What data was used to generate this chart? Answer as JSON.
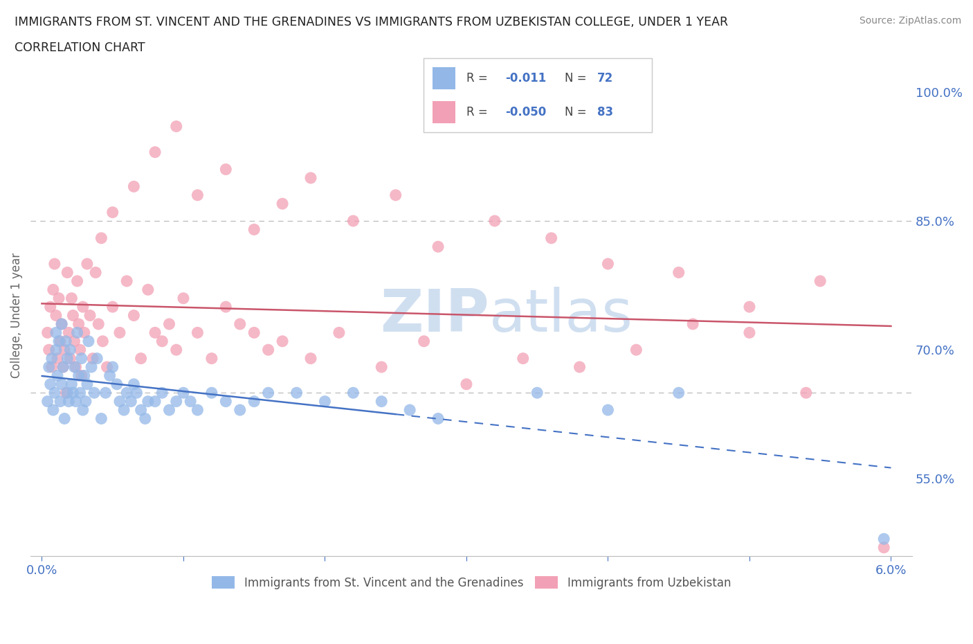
{
  "title_line1": "IMMIGRANTS FROM ST. VINCENT AND THE GRENADINES VS IMMIGRANTS FROM UZBEKISTAN COLLEGE, UNDER 1 YEAR",
  "title_line2": "CORRELATION CHART",
  "source_text": "Source: ZipAtlas.com",
  "ylabel": "College, Under 1 year",
  "xlim": [
    0.0,
    6.0
  ],
  "ylim": [
    46.0,
    102.0
  ],
  "yticks_right": [
    55.0,
    70.0,
    85.0,
    100.0
  ],
  "ytick_right_labels": [
    "55.0%",
    "70.0%",
    "85.0%",
    "100.0%"
  ],
  "hline1": 85.0,
  "hline2": 65.0,
  "series1_color": "#93B8E8",
  "series2_color": "#F2A0B5",
  "series1_label": "Immigrants from St. Vincent and the Grenadines",
  "series2_label": "Immigrants from Uzbekistan",
  "series1_R": -0.011,
  "series1_N": 72,
  "series2_R": -0.05,
  "series2_N": 83,
  "trend1_color": "#4472C4",
  "trend2_color": "#C9556A",
  "background_color": "#FFFFFF",
  "series1_x": [
    0.04,
    0.05,
    0.06,
    0.07,
    0.08,
    0.09,
    0.1,
    0.1,
    0.11,
    0.12,
    0.13,
    0.14,
    0.14,
    0.15,
    0.16,
    0.17,
    0.18,
    0.18,
    0.19,
    0.2,
    0.21,
    0.22,
    0.23,
    0.24,
    0.25,
    0.26,
    0.27,
    0.28,
    0.29,
    0.3,
    0.31,
    0.32,
    0.33,
    0.35,
    0.37,
    0.39,
    0.42,
    0.45,
    0.48,
    0.5,
    0.53,
    0.55,
    0.58,
    0.6,
    0.63,
    0.65,
    0.67,
    0.7,
    0.73,
    0.75,
    0.8,
    0.85,
    0.9,
    0.95,
    1.0,
    1.05,
    1.1,
    1.2,
    1.3,
    1.4,
    1.5,
    1.6,
    1.8,
    2.0,
    2.2,
    2.4,
    2.6,
    2.8,
    3.5,
    4.0,
    4.5,
    5.95
  ],
  "series1_y": [
    64,
    68,
    66,
    69,
    63,
    65,
    70,
    72,
    67,
    71,
    64,
    66,
    73,
    68,
    62,
    71,
    65,
    69,
    64,
    70,
    66,
    65,
    68,
    64,
    72,
    67,
    65,
    69,
    63,
    67,
    64,
    66,
    71,
    68,
    65,
    69,
    62,
    65,
    67,
    68,
    66,
    64,
    63,
    65,
    64,
    66,
    65,
    63,
    62,
    64,
    64,
    65,
    63,
    64,
    65,
    64,
    63,
    65,
    64,
    63,
    64,
    65,
    65,
    64,
    65,
    64,
    63,
    62,
    65,
    63,
    65,
    48
  ],
  "series2_x": [
    0.04,
    0.05,
    0.06,
    0.07,
    0.08,
    0.09,
    0.1,
    0.11,
    0.12,
    0.13,
    0.14,
    0.15,
    0.16,
    0.17,
    0.18,
    0.19,
    0.2,
    0.21,
    0.22,
    0.23,
    0.24,
    0.25,
    0.26,
    0.27,
    0.28,
    0.29,
    0.3,
    0.32,
    0.34,
    0.36,
    0.38,
    0.4,
    0.43,
    0.46,
    0.5,
    0.55,
    0.6,
    0.65,
    0.7,
    0.75,
    0.8,
    0.85,
    0.9,
    0.95,
    1.0,
    1.1,
    1.2,
    1.3,
    1.4,
    1.5,
    1.6,
    1.7,
    1.9,
    2.1,
    2.4,
    2.7,
    3.0,
    3.4,
    3.8,
    4.2,
    4.6,
    5.0,
    5.4,
    5.95,
    0.42,
    0.5,
    0.65,
    0.8,
    0.95,
    1.1,
    1.3,
    1.5,
    1.7,
    1.9,
    2.2,
    2.5,
    2.8,
    3.2,
    3.6,
    4.0,
    4.5,
    5.0,
    5.5
  ],
  "series2_y": [
    72,
    70,
    75,
    68,
    77,
    80,
    74,
    69,
    76,
    71,
    73,
    68,
    70,
    65,
    79,
    72,
    69,
    76,
    74,
    71,
    68,
    78,
    73,
    70,
    67,
    75,
    72,
    80,
    74,
    69,
    79,
    73,
    71,
    68,
    75,
    72,
    78,
    74,
    69,
    77,
    72,
    71,
    73,
    70,
    76,
    72,
    69,
    75,
    73,
    72,
    70,
    71,
    69,
    72,
    68,
    71,
    66,
    69,
    68,
    70,
    73,
    72,
    65,
    47,
    83,
    86,
    89,
    93,
    96,
    88,
    91,
    84,
    87,
    90,
    85,
    88,
    82,
    85,
    83,
    80,
    79,
    75,
    78
  ]
}
